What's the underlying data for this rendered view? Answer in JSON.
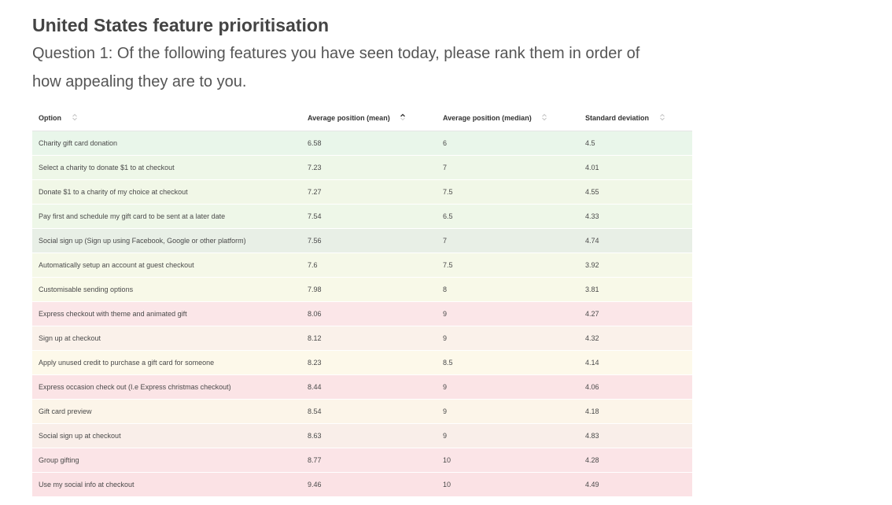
{
  "title": "United States feature prioritisation",
  "question": "Question 1: Of the following features you have seen today, please rank them in order of how appealing they are to you.",
  "table": {
    "headers": {
      "option": "Option",
      "mean": "Average position (mean)",
      "median": "Average position (median)",
      "sd": "Standard deviation"
    },
    "sorted_by": "mean",
    "sort_direction": "ascending",
    "rows": [
      {
        "option": "Charity gift card donation",
        "mean": "6.58",
        "median": "6",
        "sd": "4.5",
        "color": "#e9f6ea"
      },
      {
        "option": "Select a charity to donate $1 to at checkout",
        "mean": "7.23",
        "median": "7",
        "sd": "4.01",
        "color": "#eef7e8"
      },
      {
        "option": "Donate $1 to a charity of my choice at checkout",
        "mean": "7.27",
        "median": "7.5",
        "sd": "4.55",
        "color": "#f1f7e7"
      },
      {
        "option": "Pay first and schedule my gift card to be sent at a later date",
        "mean": "7.54",
        "median": "6.5",
        "sd": "4.33",
        "color": "#eef7e8"
      },
      {
        "option": "Social sign up (Sign up using Facebook, Google or other platform)",
        "mean": "7.56",
        "median": "7",
        "sd": "4.74",
        "color": "#e8efe6"
      },
      {
        "option": "Automatically setup an account at guest checkout",
        "mean": "7.6",
        "median": "7.5",
        "sd": "3.92",
        "color": "#f5f8e8"
      },
      {
        "option": "Customisable sending options",
        "mean": "7.98",
        "median": "8",
        "sd": "3.81",
        "color": "#f8f9e8"
      },
      {
        "option": "Express checkout with theme and animated gift",
        "mean": "8.06",
        "median": "9",
        "sd": "4.27",
        "color": "#fbe6e8"
      },
      {
        "option": "Sign up at checkout",
        "mean": "8.12",
        "median": "9",
        "sd": "4.32",
        "color": "#faf1ea"
      },
      {
        "option": "Apply unused credit to purchase a gift card for someone",
        "mean": "8.23",
        "median": "8.5",
        "sd": "4.14",
        "color": "#fdf9ea"
      },
      {
        "option": "Express occasion check out (I.e Express christmas checkout)",
        "mean": "8.44",
        "median": "9",
        "sd": "4.06",
        "color": "#fbe4e6"
      },
      {
        "option": "Gift card preview",
        "mean": "8.54",
        "median": "9",
        "sd": "4.18",
        "color": "#fcf5e9"
      },
      {
        "option": "Social sign up at checkout",
        "mean": "8.63",
        "median": "9",
        "sd": "4.83",
        "color": "#f9eee9"
      },
      {
        "option": "Group gifting",
        "mean": "8.77",
        "median": "10",
        "sd": "4.28",
        "color": "#fbe4e7"
      },
      {
        "option": "Use my social info at checkout",
        "mean": "9.46",
        "median": "10",
        "sd": "4.49",
        "color": "#fbe2e5"
      }
    ]
  }
}
